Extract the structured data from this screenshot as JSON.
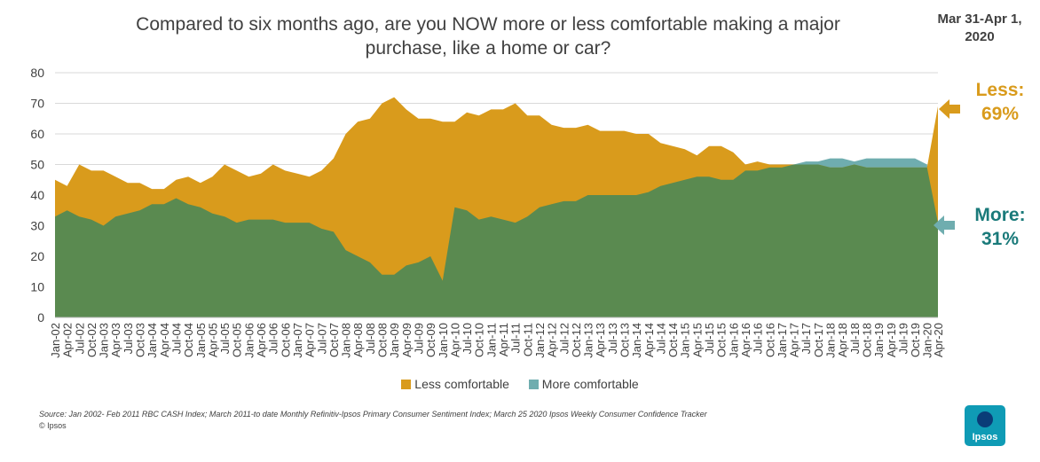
{
  "chart_data": {
    "type": "area",
    "title": "Compared to six months ago, are you NOW more or less comfortable making a major purchase, like a home or car?",
    "date_label": "Mar 31-Apr 1, 2020",
    "ylim": [
      0,
      80
    ],
    "yticks": [
      0,
      10,
      20,
      30,
      40,
      50,
      60,
      70,
      80
    ],
    "xtick_labels": [
      "Jan-02",
      "Apr-02",
      "Jul-02",
      "Oct-02",
      "Jan-03",
      "Apr-03",
      "Jul-03",
      "Oct-03",
      "Jan-04",
      "Apr-04",
      "Jul-04",
      "Oct-04",
      "Jan-05",
      "Apr-05",
      "Jul-05",
      "Oct-05",
      "Jan-06",
      "Apr-06",
      "Jul-06",
      "Oct-06",
      "Jan-07",
      "Apr-07",
      "Jul-07",
      "Oct-07",
      "Jan-08",
      "Apr-08",
      "Jul-08",
      "Oct-08",
      "Jan-09",
      "Apr-09",
      "Jul-09",
      "Oct-09",
      "Jan-10",
      "Apr-10",
      "Jul-10",
      "Oct-10",
      "Jan-11",
      "Apr-11",
      "Jul-11",
      "Oct-11",
      "Jan-12",
      "Apr-12",
      "Jul-12",
      "Oct-12",
      "Jan-13",
      "Apr-13",
      "Jul-13",
      "Oct-13",
      "Jan-14",
      "Apr-14",
      "Jul-14",
      "Oct-14",
      "Jan-15",
      "Apr-15",
      "Jul-15",
      "Oct-15",
      "Jan-16",
      "Apr-16",
      "Jul-16",
      "Oct-16",
      "Jan-17",
      "Apr-17",
      "Jul-17",
      "Oct-17",
      "Jan-18",
      "Apr-18",
      "Jul-18",
      "Oct-18",
      "Jan-19",
      "Apr-19",
      "Jul-19",
      "Oct-19",
      "Jan-20",
      "Apr-20"
    ],
    "x_quarter_index": [
      0,
      1,
      2,
      3,
      4,
      5,
      6,
      7,
      8,
      9,
      10,
      11,
      12,
      13,
      14,
      15,
      16,
      17,
      18,
      19,
      20,
      21,
      22,
      23,
      24,
      25,
      26,
      27,
      28,
      29,
      30,
      31,
      32,
      33,
      34,
      35,
      36,
      37,
      38,
      39,
      40,
      41,
      42,
      43,
      44,
      45,
      46,
      47,
      48,
      49,
      50,
      51,
      52,
      53,
      54,
      55,
      56,
      57,
      58,
      59,
      60,
      61,
      62,
      63,
      64,
      65,
      66,
      67,
      68,
      69,
      70,
      71,
      72,
      72.9
    ],
    "series": [
      {
        "name": "Less comfortable",
        "color": "#D99B1C",
        "values": [
          45,
          43,
          50,
          48,
          48,
          46,
          44,
          44,
          42,
          42,
          45,
          46,
          44,
          46,
          50,
          48,
          46,
          47,
          50,
          48,
          47,
          46,
          48,
          52,
          60,
          64,
          65,
          70,
          72,
          68,
          65,
          65,
          64,
          64,
          67,
          66,
          68,
          68,
          70,
          66,
          66,
          63,
          62,
          62,
          63,
          61,
          61,
          61,
          60,
          60,
          57,
          56,
          55,
          53,
          56,
          56,
          54,
          50,
          51,
          50,
          50,
          50,
          50,
          50,
          49,
          49,
          50,
          49,
          49,
          49,
          49,
          49,
          49,
          69
        ]
      },
      {
        "name": "More comfortable",
        "color": "#6FADAF",
        "values": [
          33,
          35,
          33,
          32,
          30,
          33,
          34,
          35,
          37,
          37,
          39,
          37,
          36,
          34,
          33,
          31,
          32,
          32,
          32,
          31,
          31,
          31,
          29,
          28,
          22,
          20,
          18,
          14,
          14,
          17,
          18,
          20,
          12,
          36,
          35,
          32,
          33,
          32,
          31,
          33,
          36,
          37,
          38,
          38,
          40,
          40,
          40,
          40,
          40,
          41,
          43,
          44,
          45,
          46,
          46,
          45,
          45,
          48,
          48,
          49,
          49,
          50,
          51,
          51,
          52,
          52,
          51,
          52,
          52,
          52,
          52,
          52,
          50,
          31
        ]
      }
    ],
    "legend": [
      "Less comfortable",
      "More comfortable"
    ],
    "legend_position": "bottom",
    "gridlines": true
  },
  "callouts": {
    "less_label": "Less:",
    "less_value": "69%",
    "less_color": "#D99B1C",
    "more_label": "More:",
    "more_value": "31%",
    "more_color": "#1A7A7A"
  },
  "colors": {
    "less": "#D99B1C",
    "more_overlap": "#5A8A50",
    "more": "#6FADAF"
  },
  "footer": {
    "source": "Source: Jan 2002- Feb 2011 RBC CASH Index; March 2011-to date Monthly Refinitiv-Ipsos Primary Consumer Sentiment Index; March 25 2020 Ipsos Weekly Consumer Confidence Tracker",
    "copyright": "© Ipsos",
    "logo_text": "Ipsos"
  }
}
